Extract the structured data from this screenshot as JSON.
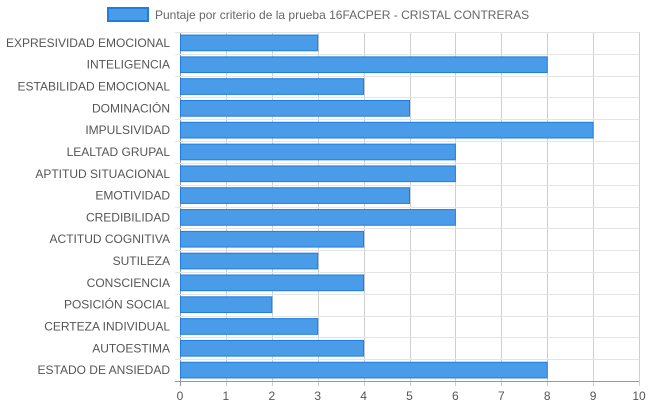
{
  "chart_data": {
    "type": "bar",
    "orientation": "horizontal",
    "categories": [
      "EXPRESIVIDAD EMOCIONAL",
      "INTELIGENCIA",
      "ESTABILIDAD EMOCIONAL",
      "DOMINACIÓN",
      "IMPULSIVIDAD",
      "LEALTAD GRUPAL",
      "APTITUD SITUACIONAL",
      "EMOTIVIDAD",
      "CREDIBILIDAD",
      "ACTITUD COGNITIVA",
      "SUTILEZA",
      "CONSCIENCIA",
      "POSICIÓN SOCIAL",
      "CERTEZA INDIVIDUAL",
      "AUTOESTIMA",
      "ESTADO DE ANSIEDAD"
    ],
    "series": [
      {
        "name": "Puntaje por criterio de la prueba 16FACPER - CRISTAL CONTRERAS",
        "values": [
          3,
          8,
          4,
          5,
          9,
          6,
          6,
          5,
          6,
          4,
          3,
          4,
          2,
          3,
          4,
          8
        ],
        "color": "#4A9BE8",
        "border_color": "#1E7EE0"
      }
    ],
    "xlim": [
      0,
      10
    ],
    "x_ticks": [
      "0",
      "1",
      "2",
      "3",
      "4",
      "5",
      "6",
      "7",
      "8",
      "9",
      "10"
    ],
    "grid": true,
    "legend_position": "top-center",
    "title": "",
    "xlabel": "",
    "ylabel": ""
  }
}
